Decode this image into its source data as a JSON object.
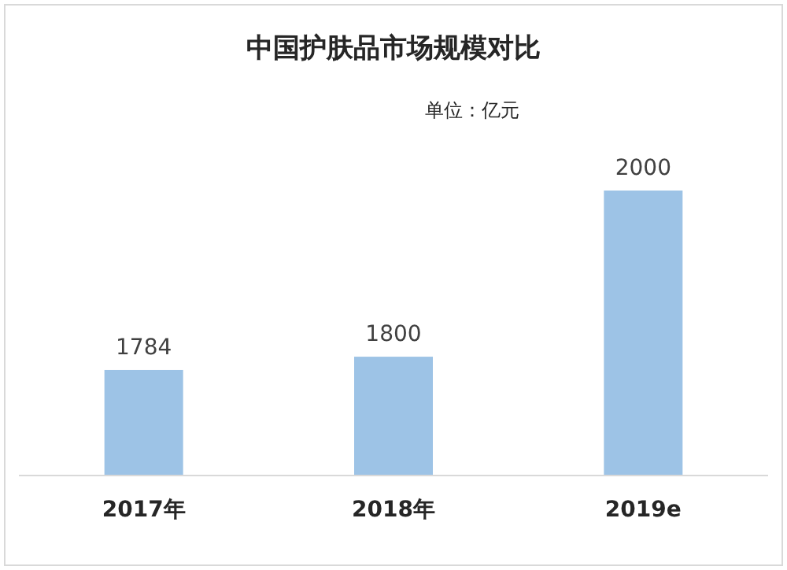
{
  "chart_data": {
    "type": "bar",
    "title": "中国护肤品市场规模对比",
    "subtitle": "单位：亿元",
    "categories": [
      "2017年",
      "2018年",
      "2019e"
    ],
    "values": [
      1784,
      1800,
      2000
    ],
    "color": "#9dc3e6",
    "data_labels": true,
    "ylim": [
      1657,
      2000
    ],
    "tick_labels": "x"
  }
}
